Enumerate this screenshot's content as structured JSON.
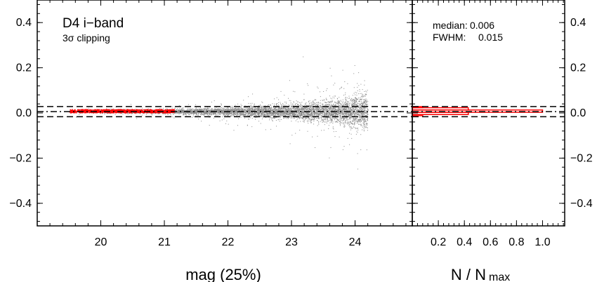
{
  "chart_data": [
    {
      "type": "scatter",
      "title": "D4 i−band",
      "subtitle": "3σ clipping",
      "xlabel": "mag (25%)",
      "ylabel": "",
      "xlim": [
        19.0,
        24.9
      ],
      "ylim": [
        -0.5,
        0.5
      ],
      "xticks": [
        20,
        21,
        22,
        23,
        24
      ],
      "xtick_labels": [
        "20",
        "21",
        "22",
        "23",
        "24"
      ],
      "yticks": [
        0.4,
        0.2,
        0.0,
        -0.2,
        -0.4
      ],
      "ytick_labels": [
        "0.4",
        "0.2",
        "0.0",
        "−0.2",
        "−0.4"
      ],
      "reference_lines": [
        {
          "y": 0.006,
          "style": "dash-dot"
        },
        {
          "y": 0.0285,
          "style": "dashed"
        },
        {
          "y": -0.0165,
          "style": "dashed"
        }
      ],
      "series": [
        {
          "color": "#8c8c8c",
          "x_range": [
            19.5,
            24.2
          ],
          "center": 0.006,
          "scatter_sigma_vs_mag": [
            [
              19.5,
              0.003
            ],
            [
              21.0,
              0.005
            ],
            [
              22.0,
              0.008
            ],
            [
              23.0,
              0.016
            ],
            [
              23.7,
              0.025
            ],
            [
              24.2,
              0.04
            ]
          ],
          "y_max_extent": 0.47
        },
        {
          "color": "#ff0000",
          "x_range": [
            19.5,
            21.15
          ],
          "center": 0.008,
          "y_range": [
            0.0,
            0.015
          ]
        }
      ]
    },
    {
      "type": "line",
      "xlabel": "N / N",
      "xlabel_subscript": "max",
      "xlim": [
        0.0,
        1.17
      ],
      "ylim": [
        -0.5,
        0.5
      ],
      "xticks": [
        0.2,
        0.4,
        0.6,
        0.8,
        1.0
      ],
      "xtick_labels": [
        "0.2",
        "0.4",
        "0.6",
        "0.8",
        "1.0"
      ],
      "yticks": [
        0.4,
        0.2,
        0.0,
        -0.2,
        -0.4
      ],
      "ytick_labels": [
        "0.4",
        "0.2",
        "0.0",
        "−0.2",
        "−0.4"
      ],
      "annotations": {
        "median_label": "median:",
        "median_value": "0.006",
        "fwhm_label": "FWHM:",
        "fwhm_value": "0.015"
      },
      "histogram": {
        "color": "#ff0000",
        "bins": [
          {
            "y0": 0.023,
            "y1": 0.028,
            "n": 0.08
          },
          {
            "y0": 0.013,
            "y1": 0.023,
            "n": 0.43
          },
          {
            "y0": 0.003,
            "y1": 0.013,
            "n": 1.0
          },
          {
            "y0": -0.007,
            "y1": 0.003,
            "n": 0.43
          },
          {
            "y0": -0.012,
            "y1": -0.007,
            "n": 0.08
          }
        ]
      },
      "reference_lines": [
        {
          "y": 0.006,
          "style": "dash-dot"
        },
        {
          "y": 0.0285,
          "style": "dashed"
        },
        {
          "y": -0.0165,
          "style": "dashed"
        }
      ]
    }
  ]
}
